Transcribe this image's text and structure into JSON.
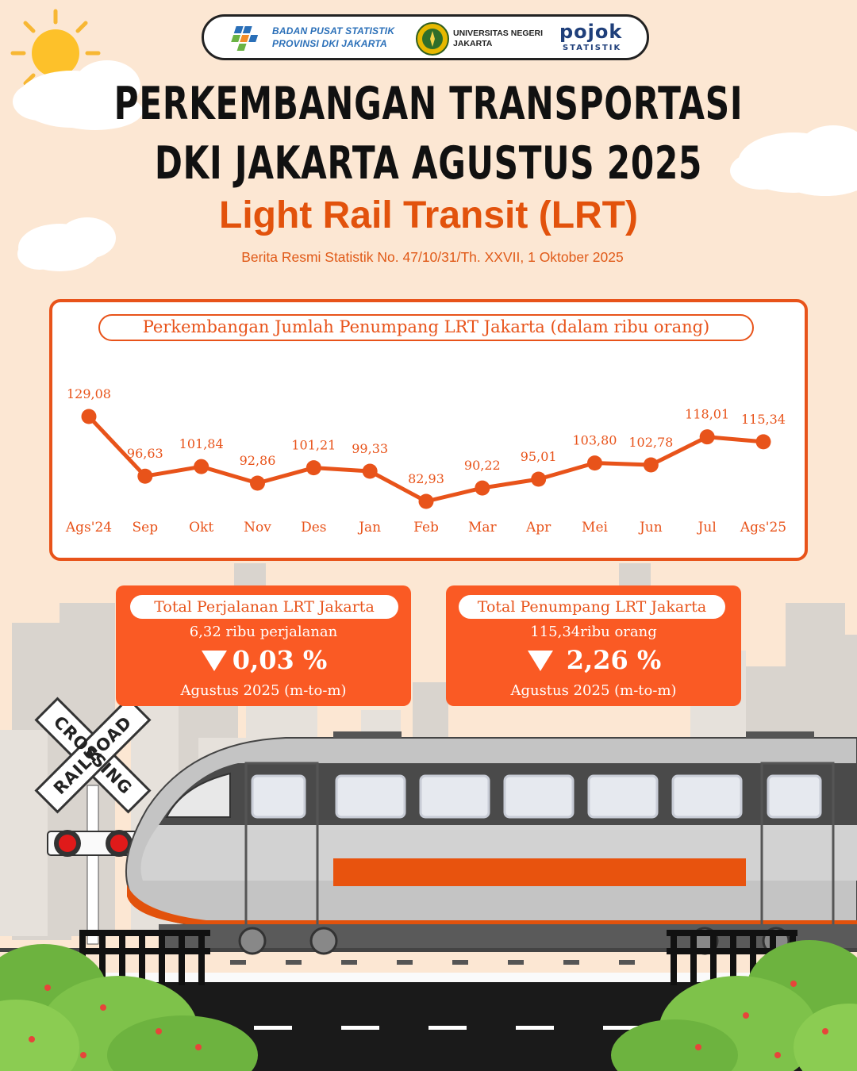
{
  "header": {
    "bps_line1": "BADAN PUSAT STATISTIK",
    "bps_line2": "PROVINSI DKI JAKARTA",
    "unj_line1": "UNIVERSITAS NEGERI",
    "unj_line2": "JAKARTA",
    "pojok": "pojok",
    "statistik": "STATISTIK"
  },
  "title_line1": "PERKEMBANGAN TRANSPORTASI",
  "title_line2": "DKI JAKARTA AGUSTUS 2025",
  "subtitle": "Light Rail Transit (LRT)",
  "source": "Berita Resmi Statistik No. 47/10/31/Th. XXVII, 1 Oktober 2025",
  "chart_data": {
    "type": "line",
    "title": "Perkembangan Jumlah Penumpang LRT Jakarta (dalam ribu orang)",
    "categories": [
      "Ags'24",
      "Sep",
      "Okt",
      "Nov",
      "Des",
      "Jan",
      "Feb",
      "Mar",
      "Apr",
      "Mei",
      "Jun",
      "Jul",
      "Ags'25"
    ],
    "values": [
      129.08,
      96.63,
      101.84,
      92.86,
      101.21,
      99.33,
      82.93,
      90.22,
      95.01,
      103.8,
      102.78,
      118.01,
      115.34
    ],
    "value_labels": [
      "129,08",
      "96,63",
      "101,84",
      "92,86",
      "101,21",
      "99,33",
      "82,93",
      "90,22",
      "95,01",
      "103,80",
      "102,78",
      "118,01",
      "115,34"
    ],
    "line_color": "#e8531a",
    "grid": false,
    "legend": "none"
  },
  "stats": [
    {
      "title": "Total Perjalanan LRT Jakarta",
      "value": "6,32 ribu perjalanan",
      "change": "0,03 %",
      "direction": "down",
      "period": "Agustus 2025 (m-to-m)"
    },
    {
      "title": "Total Penumpang LRT Jakarta",
      "value": "115,34ribu orang",
      "change": "2,26 %",
      "direction": "down",
      "period": "Agustus 2025 (m-to-m)"
    }
  ],
  "sign": {
    "word1": "RAILROAD",
    "word2": "CROSSING"
  },
  "colors": {
    "accent": "#e8531a",
    "box": "#fa5a24",
    "background": "#fce7d3"
  }
}
